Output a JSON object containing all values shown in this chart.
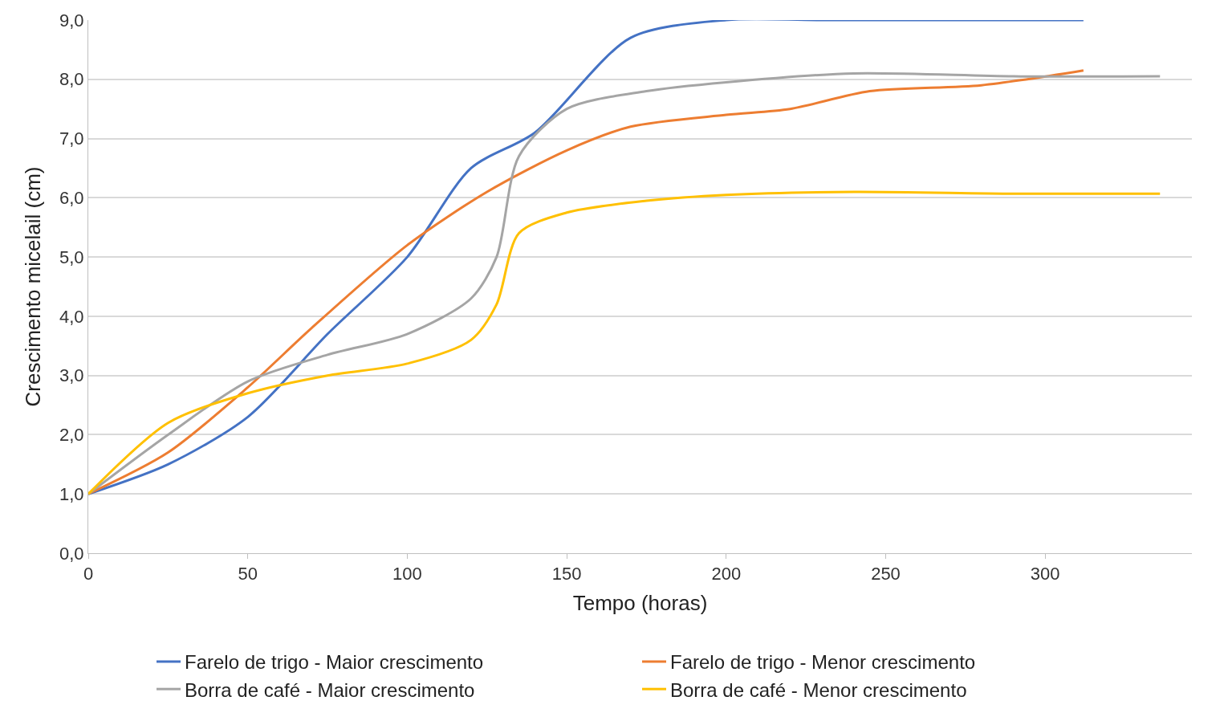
{
  "chart_data": {
    "type": "line",
    "xlabel": "Tempo (horas)",
    "ylabel": "Crescimento micelail (cm)",
    "xlim": [
      0,
      346
    ],
    "xticks": [
      0,
      50,
      100,
      150,
      200,
      250,
      300
    ],
    "ylim": [
      0,
      9
    ],
    "yticks": [
      {
        "value": 0,
        "label": "0,0"
      },
      {
        "value": 1,
        "label": "1,0"
      },
      {
        "value": 2,
        "label": "2,0"
      },
      {
        "value": 3,
        "label": "3,0"
      },
      {
        "value": 4,
        "label": "4,0"
      },
      {
        "value": 5,
        "label": "5,0"
      },
      {
        "value": 6,
        "label": "6,0"
      },
      {
        "value": 7,
        "label": "7,0"
      },
      {
        "value": 8,
        "label": "8,0"
      },
      {
        "value": 9,
        "label": "9,0"
      }
    ],
    "grid": "y",
    "legend": "bottom",
    "marker": "none",
    "line_style": "solid",
    "series": [
      {
        "name": "Farelo de trigo - Maior crescimento",
        "color": "#4472c4",
        "x": [
          0,
          25,
          50,
          75,
          100,
          120,
          140,
          170,
          200,
          230,
          312
        ],
        "values": [
          1,
          1.5,
          2.3,
          3.7,
          5.0,
          6.5,
          7.1,
          8.7,
          9.0,
          9.0,
          9.0
        ]
      },
      {
        "name": "Farelo de trigo - Menor crescimento",
        "color": "#ed7d31",
        "x": [
          0,
          25,
          50,
          70,
          100,
          125,
          150,
          170,
          200,
          220,
          245,
          280,
          312
        ],
        "values": [
          1,
          1.7,
          2.8,
          3.8,
          5.2,
          6.1,
          6.8,
          7.2,
          7.4,
          7.5,
          7.8,
          7.9,
          8.15
        ]
      },
      {
        "name": "Borra de café - Maior crescimento",
        "color": "#a5a5a5",
        "x": [
          0,
          25,
          50,
          75,
          100,
          120,
          128,
          135,
          150,
          175,
          200,
          240,
          290,
          336
        ],
        "values": [
          1,
          2.0,
          2.9,
          3.35,
          3.7,
          4.3,
          5.0,
          6.7,
          7.5,
          7.8,
          7.95,
          8.1,
          8.05,
          8.05
        ]
      },
      {
        "name": "Borra de café - Menor crescimento",
        "color": "#ffc000",
        "x": [
          0,
          25,
          50,
          75,
          100,
          120,
          128,
          135,
          150,
          175,
          200,
          240,
          290,
          336
        ],
        "values": [
          1,
          2.2,
          2.7,
          3.0,
          3.2,
          3.6,
          4.2,
          5.4,
          5.75,
          5.95,
          6.05,
          6.1,
          6.07,
          6.07
        ]
      }
    ]
  }
}
